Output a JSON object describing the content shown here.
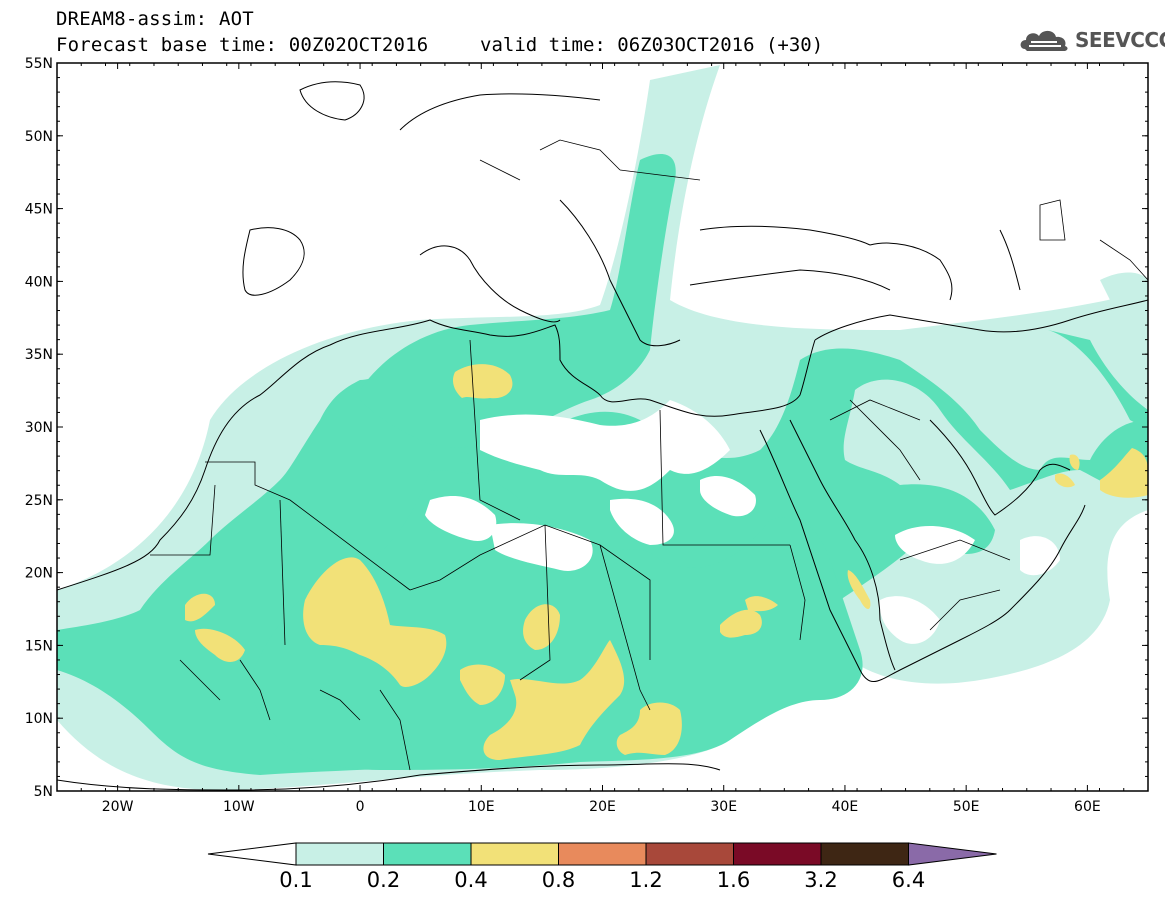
{
  "header": {
    "line1": "DREAM8-assim: AOT",
    "line2": "Forecast base time: 00Z02OCT2016",
    "line2b": "valid time: 06Z03OCT2016 (+30)"
  },
  "logo": {
    "text": "SEEVCCC",
    "icon": "cloud-icon"
  },
  "map": {
    "lat_labels": [
      "55N",
      "50N",
      "45N",
      "40N",
      "35N",
      "30N",
      "25N",
      "20N",
      "15N",
      "10N",
      "5N"
    ],
    "lon_labels": [
      "20W",
      "10W",
      "0",
      "10E",
      "20E",
      "30E",
      "40E",
      "50E",
      "60E"
    ],
    "extent": {
      "lon": [
        -25,
        65
      ],
      "lat": [
        5,
        55
      ]
    }
  },
  "colorbar": {
    "labels": [
      "0.1",
      "0.2",
      "0.4",
      "0.8",
      "1.2",
      "1.6",
      "3.2",
      "6.4"
    ],
    "colors": [
      "#ffffff",
      "#c8f0e6",
      "#5be0b8",
      "#f2e178",
      "#e88a5c",
      "#a8483a",
      "#7a0a26",
      "#3e2614",
      "#8a6aa8"
    ]
  }
}
